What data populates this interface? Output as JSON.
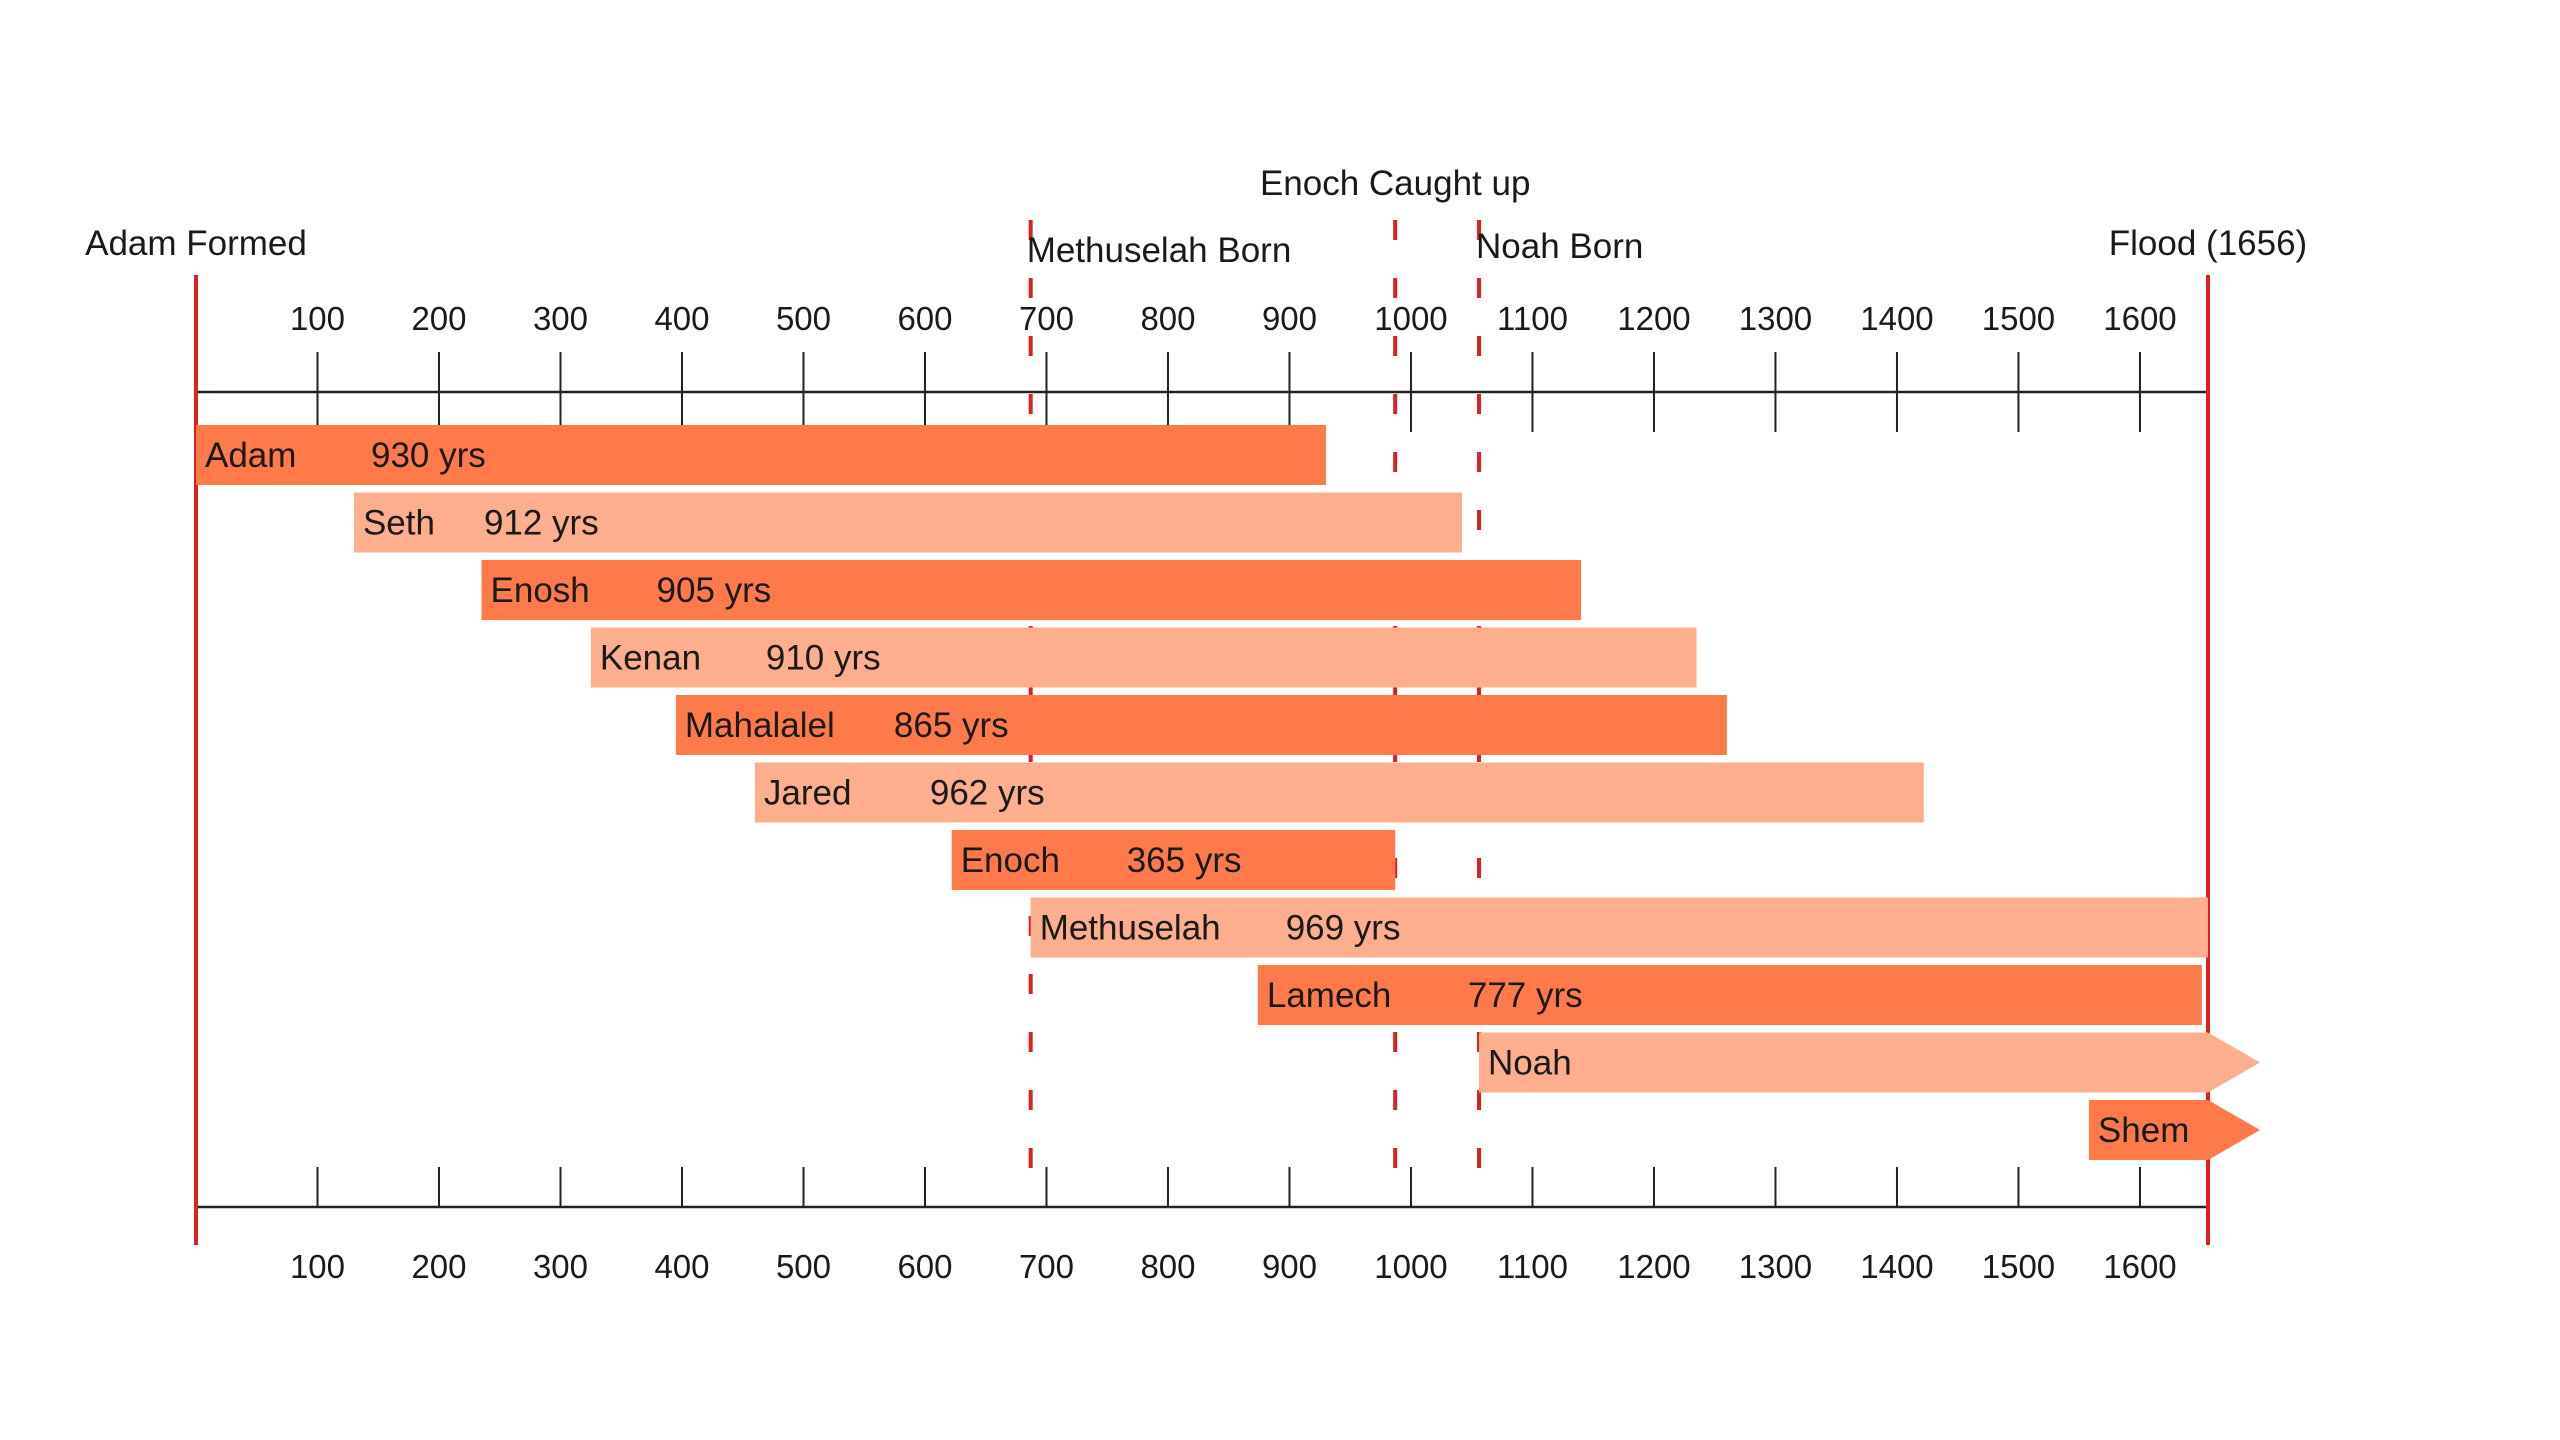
{
  "chart_data": {
    "type": "bar",
    "orientation": "horizontal-timeline",
    "xlim": [
      0,
      1656
    ],
    "xticks": [
      100,
      200,
      300,
      400,
      500,
      600,
      700,
      800,
      900,
      1000,
      1100,
      1200,
      1300,
      1400,
      1500,
      1600
    ],
    "xtick_labels": [
      "100",
      "200",
      "300",
      "400",
      "500",
      "600",
      "700",
      "800",
      "900",
      "1000",
      "1100",
      "1200",
      "1300",
      "1400",
      "1500",
      "1600"
    ],
    "colors": {
      "dark": "#ff7a4a",
      "light": "#fdae8e",
      "line": "#e02020",
      "axis": "#222222"
    },
    "events": [
      {
        "label": "Adam Formed",
        "year": 0,
        "style": "solid"
      },
      {
        "label": "Methuselah Born",
        "year": 687,
        "style": "dashed"
      },
      {
        "label": "Enoch Caught up",
        "year": 987,
        "style": "dashed"
      },
      {
        "label": "Noah Born",
        "year": 1056,
        "style": "dashed"
      },
      {
        "label": "Flood (1656)",
        "year": 1656,
        "style": "solid"
      }
    ],
    "bars": [
      {
        "name": "Adam",
        "lifespan": "930 yrs",
        "start": 0,
        "end": 930,
        "shade": "dark"
      },
      {
        "name": "Seth",
        "lifespan": "912 yrs",
        "start": 130,
        "end": 1042,
        "shade": "light"
      },
      {
        "name": "Enosh",
        "lifespan": "905 yrs",
        "start": 235,
        "end": 1140,
        "shade": "dark"
      },
      {
        "name": "Kenan",
        "lifespan": "910 yrs",
        "start": 325,
        "end": 1235,
        "shade": "light"
      },
      {
        "name": "Mahalalel",
        "lifespan": "865 yrs",
        "start": 395,
        "end": 1260,
        "shade": "dark"
      },
      {
        "name": "Jared",
        "lifespan": "962 yrs",
        "start": 460,
        "end": 1422,
        "shade": "light"
      },
      {
        "name": "Enoch",
        "lifespan": "365 yrs",
        "start": 622,
        "end": 987,
        "shade": "dark"
      },
      {
        "name": "Methuselah",
        "lifespan": "969 yrs",
        "start": 687,
        "end": 1656,
        "shade": "light"
      },
      {
        "name": "Lamech",
        "lifespan": "777 yrs",
        "start": 874,
        "end": 1651,
        "shade": "dark"
      },
      {
        "name": "Noah",
        "lifespan": "",
        "start": 1056,
        "end": 1656,
        "shade": "light",
        "continues": true
      },
      {
        "name": "Shem",
        "lifespan": "",
        "start": 1558,
        "end": 1656,
        "shade": "dark",
        "continues": true
      }
    ]
  }
}
